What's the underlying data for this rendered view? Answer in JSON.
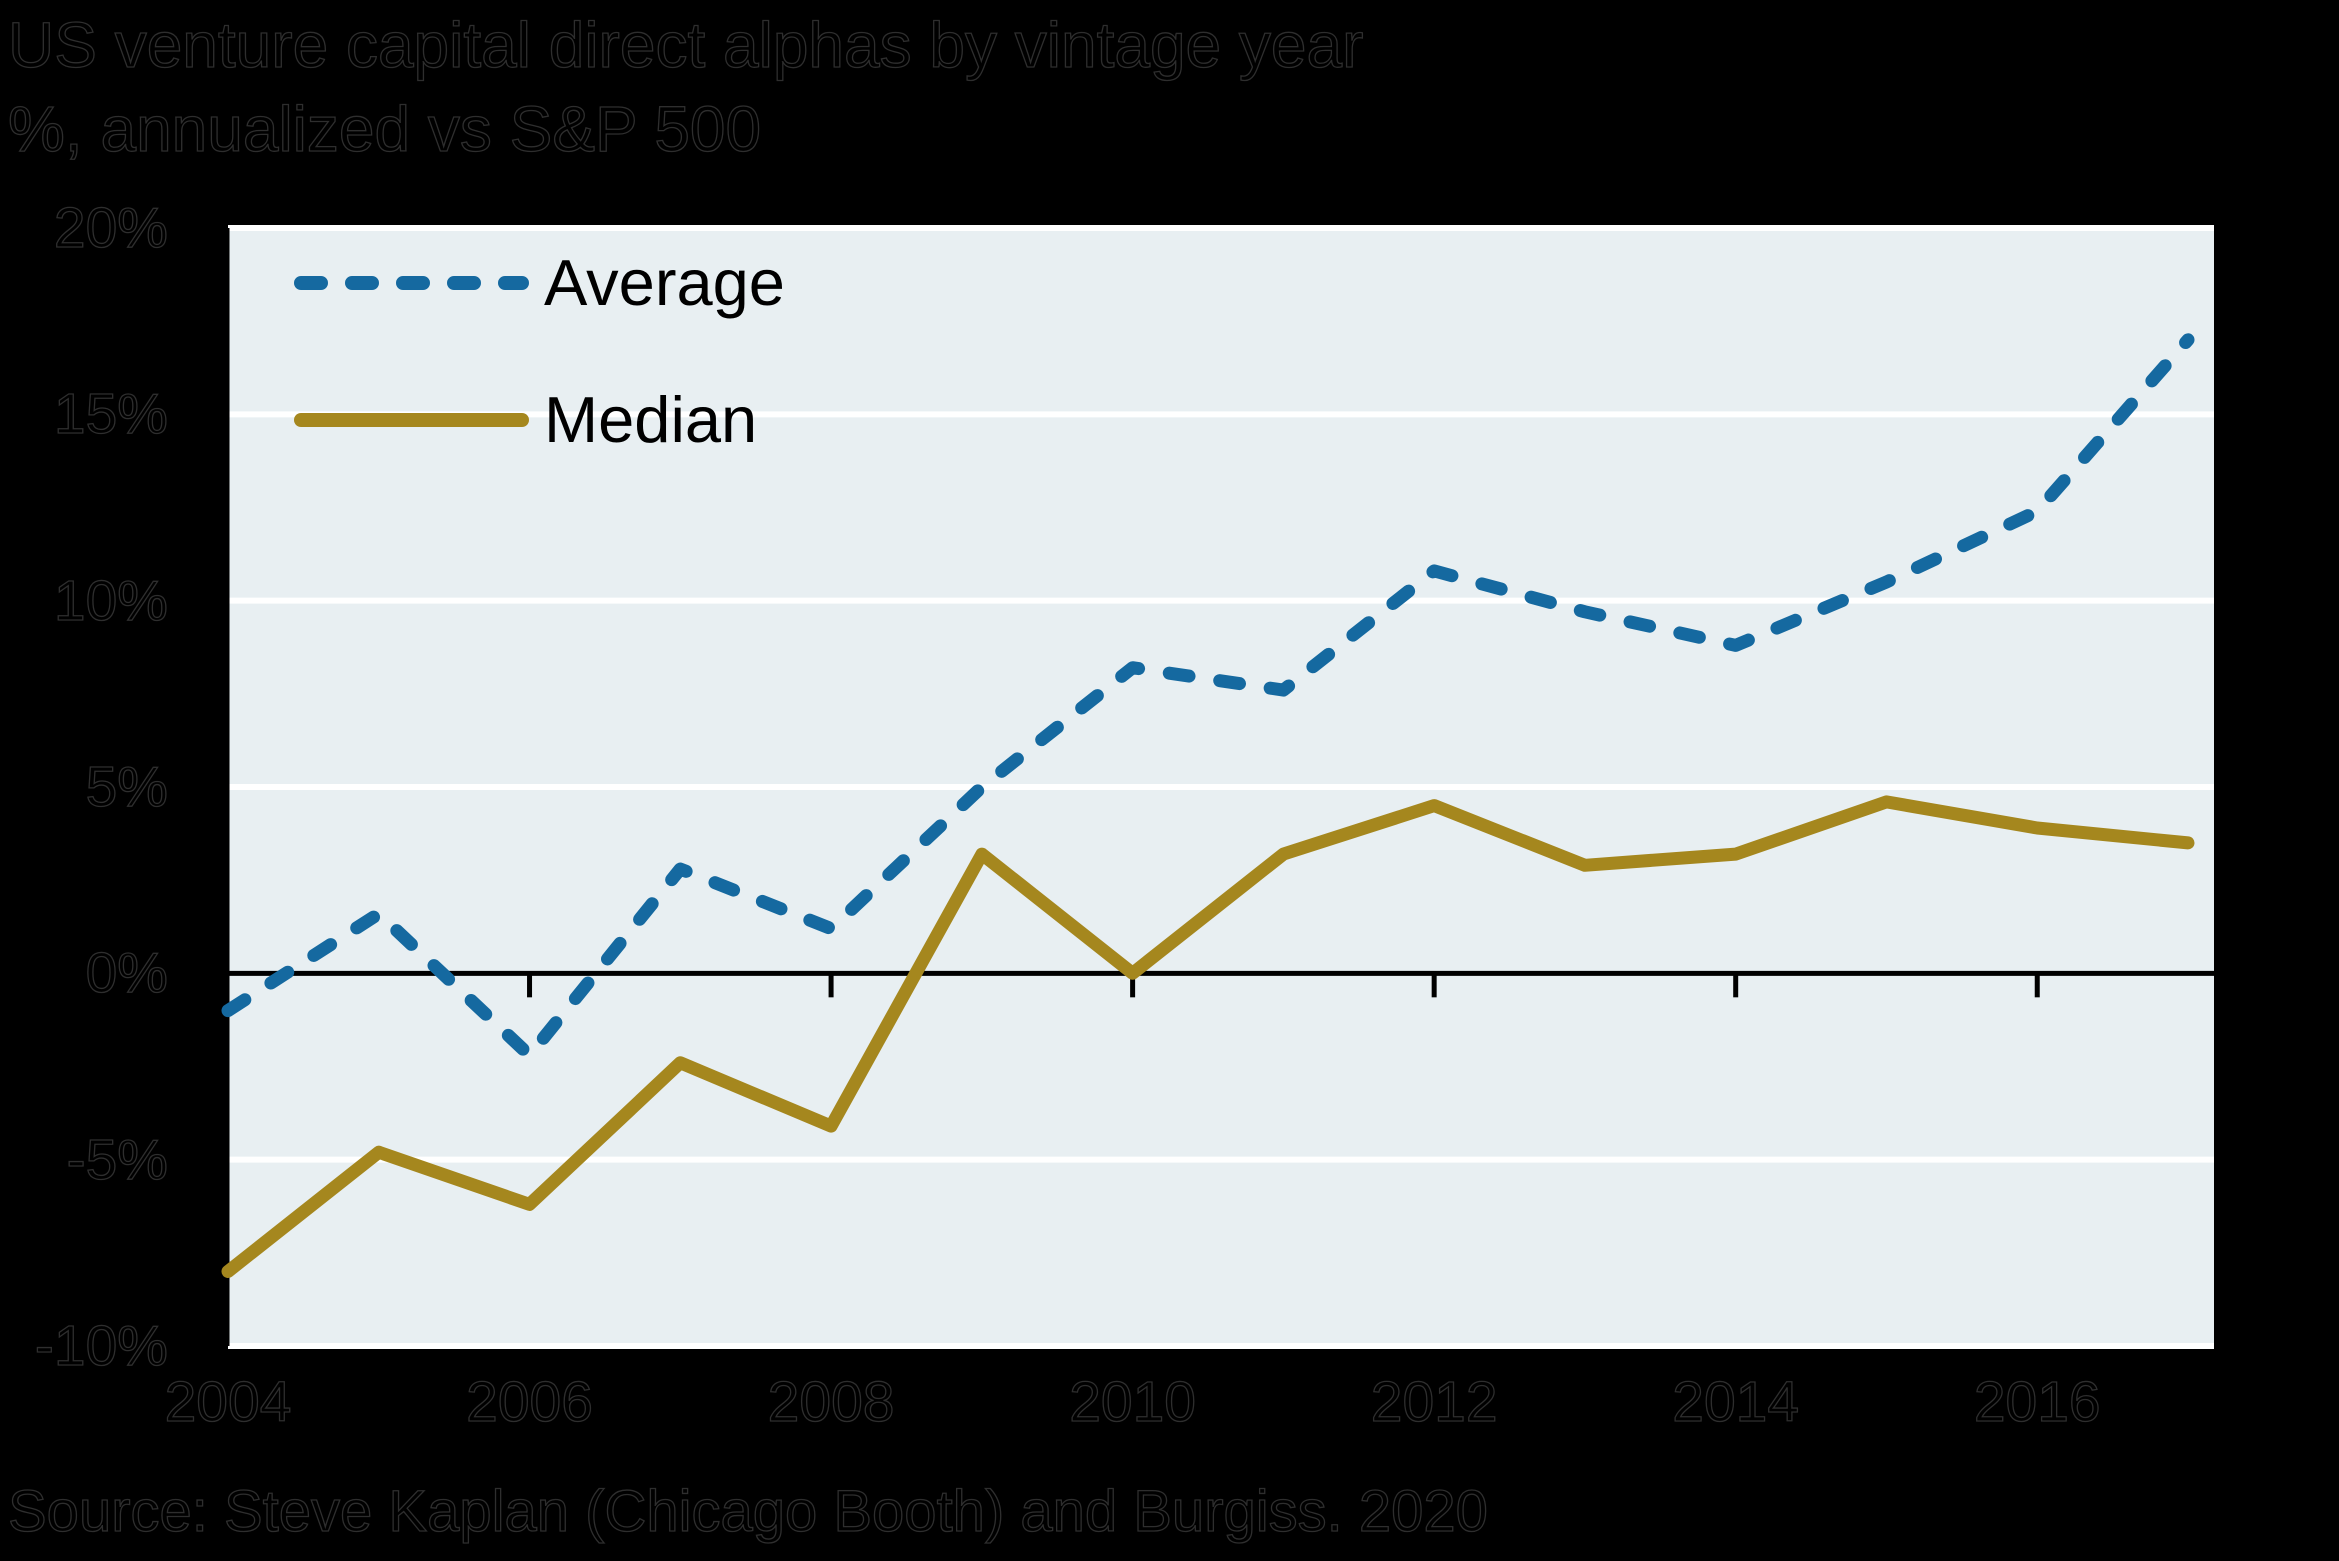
{
  "header": {
    "title": "US venture capital direct alphas by vintage year",
    "subtitle": "%, annualized vs S&P 500"
  },
  "footer": {
    "source": "Source: Steve Kaplan (Chicago Booth) and Burgiss. 2020"
  },
  "legend": {
    "average_label": "Average",
    "median_label": "Median"
  },
  "colors": {
    "average_line": "#1569a0",
    "median_line": "#a5871e",
    "plot_background": "#e8eff2",
    "gridline": "#ffffff",
    "axis": "#000000",
    "page_background": "#000000"
  },
  "chart_data": {
    "type": "line",
    "title": "US venture capital direct alphas by vintage year",
    "subtitle": "%, annualized vs S&P 500",
    "x": [
      2004,
      2005,
      2006,
      2007,
      2008,
      2009,
      2010,
      2011,
      2012,
      2013,
      2014,
      2015,
      2016,
      2017
    ],
    "series": [
      {
        "name": "Average",
        "style": "dashed",
        "color": "#1569a0",
        "values": [
          -1.0,
          1.6,
          -2.2,
          2.8,
          1.2,
          5.0,
          8.2,
          7.6,
          10.8,
          9.7,
          8.8,
          10.5,
          12.4,
          17.0
        ]
      },
      {
        "name": "Median",
        "style": "solid",
        "color": "#a5871e",
        "values": [
          -8.0,
          -4.8,
          -6.2,
          -2.4,
          -4.1,
          3.2,
          0.0,
          3.2,
          4.5,
          2.9,
          3.2,
          4.6,
          3.9,
          3.5
        ]
      }
    ],
    "ylim": [
      -10,
      20
    ],
    "yticks": [
      {
        "value": 20,
        "label": "20%"
      },
      {
        "value": 15,
        "label": "15%"
      },
      {
        "value": 10,
        "label": "10%"
      },
      {
        "value": 5,
        "label": "5%"
      },
      {
        "value": 0,
        "label": "0%"
      },
      {
        "value": -5,
        "label": "-5%"
      },
      {
        "value": -10,
        "label": "-10%"
      }
    ],
    "xticks": [
      {
        "value": 2004,
        "label": "2004"
      },
      {
        "value": 2006,
        "label": "2006"
      },
      {
        "value": 2008,
        "label": "2008"
      },
      {
        "value": 2010,
        "label": "2010"
      },
      {
        "value": 2012,
        "label": "2012"
      },
      {
        "value": 2014,
        "label": "2014"
      },
      {
        "value": 2016,
        "label": "2016"
      }
    ],
    "axis_tick_mark_years": [
      2006,
      2008,
      2010,
      2012,
      2014,
      2016
    ],
    "grid": true,
    "zero_axis_line": true,
    "legend_position": "top-left"
  }
}
